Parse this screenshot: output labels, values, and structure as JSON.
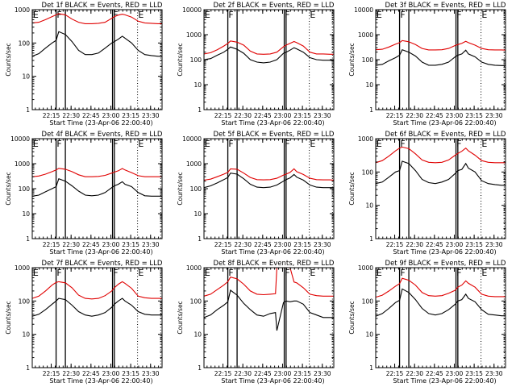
{
  "figure": {
    "xlabel": "Start Time (23-Apr-06 22:00:40)",
    "ylabel": "Counts/sec",
    "legend": "BLACK = Events, RED = LLD",
    "series_colors": {
      "events": "#000000",
      "lld": "#e00000"
    },
    "x_start_min": 0,
    "x_end_min": 98,
    "x_ticks": [
      {
        "min": 14.33,
        "label": "22:15"
      },
      {
        "min": 29.33,
        "label": "22:30"
      },
      {
        "min": 44.33,
        "label": "22:45"
      },
      {
        "min": 59.33,
        "label": "23:00"
      },
      {
        "min": 74.33,
        "label": "23:15"
      },
      {
        "min": 89.33,
        "label": "23:30"
      }
    ],
    "markers": [
      {
        "label": "E",
        "min": 0.5
      },
      {
        "label": "F",
        "min": 18.5
      },
      {
        "label": "F",
        "min": 61.0
      },
      {
        "label": "E",
        "min": 80.0
      }
    ],
    "solid_lines_min": [
      18.0,
      25.0,
      60.6,
      62.0
    ],
    "dotted_lines_min": [
      79.5,
      97.0
    ]
  },
  "chart_data": [
    {
      "type": "line",
      "title": "Det 1f BLACK = Events, RED = LLD",
      "xlabel": "Start Time (23-Apr-06 22:00:40)",
      "ylabel": "Counts/sec",
      "yscale": "log",
      "ylim": [
        1,
        1000
      ],
      "yticks": [
        "1",
        "10",
        "100",
        "1000"
      ],
      "x": [
        0,
        5,
        10,
        15,
        18,
        20,
        25,
        30,
        35,
        40,
        45,
        50,
        55,
        60,
        62,
        65,
        68,
        70,
        75,
        80,
        85,
        90,
        95,
        98
      ],
      "series": [
        {
          "name": "Events",
          "values": [
            40,
            48,
            70,
            100,
            120,
            220,
            180,
            110,
            60,
            45,
            45,
            50,
            70,
            100,
            110,
            130,
            160,
            140,
            100,
            60,
            45,
            42,
            40,
            40
          ]
        },
        {
          "name": "LLD",
          "values": [
            400,
            420,
            500,
            620,
            700,
            760,
            700,
            520,
            420,
            380,
            380,
            390,
            420,
            550,
            620,
            690,
            730,
            700,
            600,
            450,
            400,
            390,
            380,
            380
          ]
        }
      ]
    },
    {
      "type": "line",
      "title": "Det 2f BLACK = Events, RED = LLD",
      "xlabel": "Start Time (23-Apr-06 22:00:40)",
      "ylabel": "Counts/sec",
      "yscale": "log",
      "ylim": [
        1,
        10000
      ],
      "yticks": [
        "1",
        "10",
        "100",
        "1000",
        "10000"
      ],
      "x": [
        0,
        5,
        10,
        15,
        18,
        20,
        25,
        30,
        35,
        40,
        45,
        50,
        55,
        60,
        62,
        65,
        68,
        70,
        75,
        80,
        85,
        90,
        95,
        98
      ],
      "series": [
        {
          "name": "Events",
          "values": [
            100,
            110,
            150,
            200,
            260,
            320,
            260,
            180,
            100,
            80,
            75,
            80,
            100,
            180,
            200,
            240,
            300,
            270,
            200,
            120,
            100,
            95,
            95,
            90
          ]
        },
        {
          "name": "LLD",
          "values": [
            170,
            190,
            250,
            350,
            450,
            560,
            500,
            380,
            220,
            170,
            165,
            170,
            200,
            330,
            380,
            450,
            530,
            480,
            350,
            200,
            170,
            170,
            165,
            165
          ]
        }
      ]
    },
    {
      "type": "line",
      "title": "Det 3f BLACK = Events, RED = LLD",
      "xlabel": "Start Time (23-Apr-06 22:00:40)",
      "ylabel": "Counts/sec",
      "yscale": "log",
      "ylim": [
        1,
        10000
      ],
      "yticks": [
        "1",
        "10",
        "100",
        "1000",
        "10000"
      ],
      "x": [
        0,
        5,
        10,
        15,
        18,
        20,
        25,
        30,
        35,
        40,
        45,
        50,
        55,
        60,
        62,
        65,
        68,
        70,
        75,
        80,
        85,
        90,
        95,
        98
      ],
      "series": [
        {
          "name": "Events",
          "values": [
            60,
            65,
            90,
            120,
            150,
            250,
            200,
            140,
            80,
            60,
            60,
            65,
            80,
            130,
            150,
            170,
            240,
            170,
            130,
            80,
            65,
            60,
            58,
            58
          ]
        },
        {
          "name": "LLD",
          "values": [
            250,
            260,
            320,
            420,
            480,
            580,
            520,
            400,
            280,
            245,
            245,
            250,
            280,
            370,
            400,
            450,
            540,
            480,
            380,
            280,
            250,
            245,
            245,
            240
          ]
        }
      ]
    },
    {
      "type": "line",
      "title": "Det 4f BLACK = Events, RED = LLD",
      "xlabel": "Start Time (23-Apr-06 22:00:40)",
      "ylabel": "Counts/sec",
      "yscale": "log",
      "ylim": [
        1,
        10000
      ],
      "yticks": [
        "1",
        "10",
        "100",
        "1000",
        "10000"
      ],
      "x": [
        0,
        5,
        10,
        15,
        18,
        20,
        25,
        30,
        35,
        40,
        45,
        50,
        55,
        60,
        62,
        65,
        68,
        70,
        75,
        80,
        85,
        90,
        95,
        98
      ],
      "series": [
        {
          "name": "Events",
          "values": [
            50,
            55,
            75,
            100,
            120,
            250,
            200,
            130,
            80,
            55,
            52,
            55,
            70,
            110,
            130,
            150,
            190,
            150,
            120,
            70,
            52,
            50,
            50,
            50
          ]
        },
        {
          "name": "LLD",
          "values": [
            300,
            320,
            380,
            480,
            560,
            650,
            600,
            480,
            360,
            300,
            300,
            310,
            340,
            420,
            460,
            520,
            640,
            560,
            440,
            330,
            300,
            300,
            300,
            300
          ]
        }
      ]
    },
    {
      "type": "line",
      "title": "Det 5f BLACK = Events, RED = LLD",
      "xlabel": "Start Time (23-Apr-06 22:00:40)",
      "ylabel": "Counts/sec",
      "yscale": "log",
      "ylim": [
        1,
        10000
      ],
      "yticks": [
        "1",
        "10",
        "100",
        "1000",
        "10000"
      ],
      "x": [
        0,
        5,
        10,
        15,
        18,
        20,
        25,
        30,
        35,
        40,
        45,
        50,
        55,
        60,
        62,
        65,
        68,
        70,
        75,
        80,
        85,
        90,
        95,
        98
      ],
      "series": [
        {
          "name": "Events",
          "values": [
            110,
            130,
            170,
            230,
            280,
            420,
            380,
            250,
            150,
            115,
            110,
            115,
            140,
            200,
            230,
            270,
            370,
            290,
            220,
            140,
            115,
            110,
            110,
            110
          ]
        },
        {
          "name": "LLD",
          "values": [
            220,
            240,
            300,
            380,
            450,
            620,
            600,
            420,
            280,
            230,
            225,
            230,
            260,
            350,
            380,
            450,
            620,
            480,
            370,
            260,
            230,
            225,
            225,
            220
          ]
        }
      ]
    },
    {
      "type": "line",
      "title": "Det 6f BLACK = Events, RED = LLD",
      "xlabel": "Start Time (23-Apr-06 22:00:40)",
      "ylabel": "Counts/sec",
      "yscale": "log",
      "ylim": [
        1,
        1000
      ],
      "yticks": [
        "1",
        "10",
        "100",
        "1000"
      ],
      "x": [
        0,
        5,
        10,
        15,
        18,
        20,
        25,
        30,
        35,
        40,
        45,
        50,
        55,
        60,
        62,
        65,
        68,
        70,
        75,
        80,
        85,
        90,
        95,
        98
      ],
      "series": [
        {
          "name": "Events",
          "values": [
            45,
            50,
            70,
            100,
            110,
            210,
            180,
            110,
            60,
            48,
            45,
            50,
            60,
            90,
            110,
            120,
            180,
            130,
            100,
            55,
            45,
            42,
            40,
            40
          ]
        },
        {
          "name": "LLD",
          "values": [
            190,
            220,
            300,
            430,
            520,
            560,
            500,
            350,
            230,
            195,
            190,
            195,
            230,
            320,
            360,
            420,
            520,
            430,
            320,
            220,
            195,
            190,
            190,
            190
          ]
        }
      ]
    },
    {
      "type": "line",
      "title": "Det 7f BLACK = Events, RED = LLD",
      "xlabel": "Start Time (23-Apr-06 22:00:40)",
      "ylabel": "Counts/sec",
      "yscale": "log",
      "ylim": [
        1,
        1000
      ],
      "yticks": [
        "1",
        "10",
        "100",
        "1000"
      ],
      "x": [
        0,
        5,
        10,
        15,
        18,
        20,
        25,
        30,
        35,
        40,
        45,
        50,
        55,
        60,
        62,
        65,
        68,
        70,
        75,
        80,
        85,
        90,
        95,
        98
      ],
      "series": [
        {
          "name": "Events",
          "values": [
            35,
            40,
            55,
            80,
            100,
            120,
            110,
            75,
            48,
            38,
            35,
            38,
            45,
            65,
            80,
            100,
            120,
            100,
            75,
            48,
            40,
            38,
            38,
            38
          ]
        },
        {
          "name": "LLD",
          "values": [
            120,
            140,
            200,
            300,
            360,
            380,
            350,
            250,
            150,
            120,
            115,
            120,
            145,
            200,
            250,
            320,
            380,
            340,
            240,
            140,
            125,
            120,
            120,
            120
          ]
        }
      ]
    },
    {
      "type": "line",
      "title": "Det 8f BLACK = Events, RED = LLD",
      "xlabel": "Start Time (23-Apr-06 22:00:40)",
      "ylabel": "Counts/sec",
      "yscale": "log",
      "ylim": [
        1,
        1000
      ],
      "yticks": [
        "1",
        "10",
        "100",
        "1000"
      ],
      "x": [
        0,
        5,
        10,
        15,
        18,
        20,
        25,
        30,
        35,
        40,
        45,
        50,
        54,
        55,
        60,
        62,
        65,
        68,
        70,
        75,
        80,
        85,
        90,
        95,
        98
      ],
      "series": [
        {
          "name": "Events",
          "values": [
            32,
            38,
            55,
            75,
            95,
            210,
            150,
            85,
            55,
            38,
            35,
            42,
            45,
            13,
            90,
            100,
            95,
            100,
            100,
            80,
            45,
            38,
            32,
            32,
            32
          ]
        },
        {
          "name": "LLD",
          "values": [
            140,
            160,
            220,
            300,
            380,
            520,
            460,
            320,
            200,
            160,
            155,
            160,
            165,
            1000,
            1000,
            1000,
            1000,
            370,
            350,
            250,
            160,
            145,
            140,
            140,
            140
          ]
        }
      ]
    },
    {
      "type": "line",
      "title": "Det 9f BLACK = Events, RED = LLD",
      "xlabel": "Start Time (23-Apr-06 22:00:40)",
      "ylabel": "Counts/sec",
      "yscale": "log",
      "ylim": [
        1,
        1000
      ],
      "yticks": [
        "1",
        "10",
        "100",
        "1000"
      ],
      "x": [
        0,
        5,
        10,
        15,
        18,
        20,
        25,
        30,
        35,
        40,
        45,
        50,
        55,
        60,
        62,
        65,
        68,
        70,
        75,
        80,
        85,
        90,
        95,
        98
      ],
      "series": [
        {
          "name": "Events",
          "values": [
            35,
            42,
            60,
            90,
            105,
            230,
            180,
            110,
            60,
            42,
            38,
            42,
            55,
            80,
            100,
            110,
            160,
            120,
            95,
            55,
            40,
            38,
            36,
            36
          ]
        },
        {
          "name": "LLD",
          "values": [
            130,
            150,
            200,
            280,
            330,
            480,
            420,
            300,
            180,
            145,
            140,
            145,
            170,
            210,
            260,
            300,
            400,
            340,
            260,
            160,
            140,
            135,
            135,
            135
          ]
        }
      ]
    }
  ]
}
